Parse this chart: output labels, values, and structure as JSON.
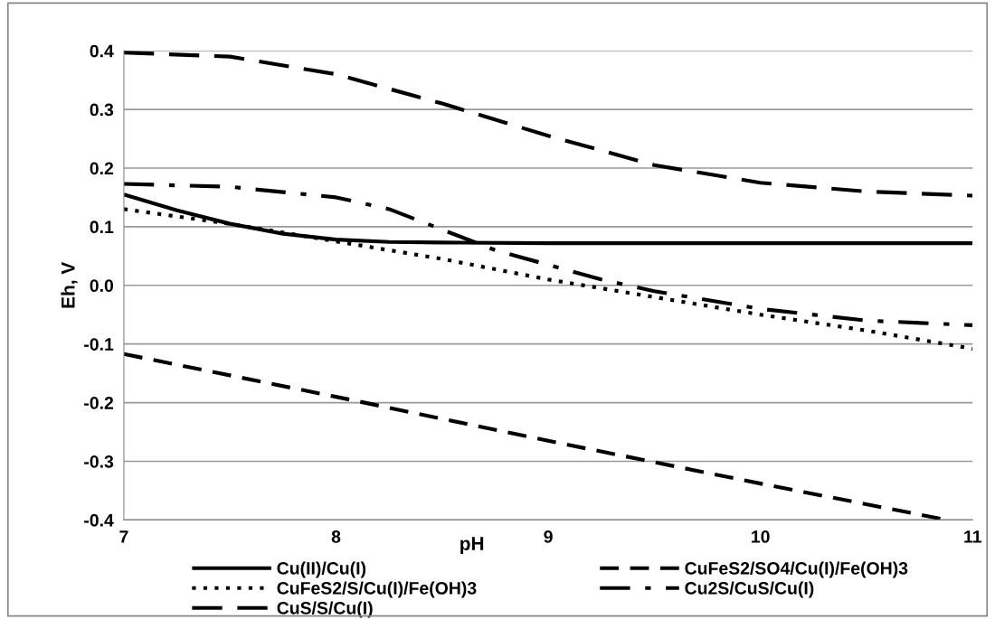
{
  "chart_data": {
    "type": "line",
    "xlabel": "pH",
    "ylabel": "Eh, V",
    "xlim": [
      7,
      11
    ],
    "xticks": [
      7,
      8,
      9,
      10,
      11
    ],
    "ylim": [
      -0.4,
      0.4
    ],
    "yticks": [
      {
        "value": -0.4,
        "label": "-0.4"
      },
      {
        "value": -0.3,
        "label": "-0.3"
      },
      {
        "value": -0.2,
        "label": "-0.2"
      },
      {
        "value": -0.1,
        "label": "-0.1"
      },
      {
        "value": 0,
        "label": "0.0"
      },
      {
        "value": 0.1,
        "label": "0.1"
      },
      {
        "value": 0.2,
        "label": "0.2"
      },
      {
        "value": 0.3,
        "label": "0.3"
      },
      {
        "value": 0.4,
        "label": "0.4"
      }
    ],
    "grid": "y",
    "legend": "bottom",
    "marker": "none",
    "series": [
      {
        "name": "Cu(II)/Cu(I)",
        "color": "#000000",
        "line_style": "solid",
        "x": [
          7,
          7.25,
          7.5,
          7.75,
          8,
          8.25,
          8.5,
          9,
          10,
          11
        ],
        "values": [
          0.155,
          0.128,
          0.105,
          0.088,
          0.078,
          0.074,
          0.073,
          0.072,
          0.072,
          0.072
        ]
      },
      {
        "name": "CuFeS2/SO4/Cu(I)/Fe(OH)3",
        "color": "#000000",
        "line_style": "dashed",
        "x": [
          7,
          8,
          9,
          10,
          10.88
        ],
        "values": [
          -0.117,
          -0.19,
          -0.265,
          -0.338,
          -0.4
        ]
      },
      {
        "name": "CuFeS2/S/Cu(I)/Fe(OH)3",
        "color": "#000000",
        "line_style": "dotted",
        "x": [
          7,
          7.5,
          8,
          8.5,
          9,
          9.5,
          10,
          10.5,
          11
        ],
        "values": [
          0.13,
          0.105,
          0.075,
          0.045,
          0.01,
          -0.02,
          -0.05,
          -0.077,
          -0.108
        ]
      },
      {
        "name": "Cu2S/CuS/Cu(I)",
        "color": "#000000",
        "line_style": "dashdot",
        "x": [
          7,
          7.5,
          8,
          8.25,
          8.5,
          8.75,
          9,
          9.25,
          9.5,
          10,
          10.5,
          11
        ],
        "values": [
          0.173,
          0.168,
          0.15,
          0.13,
          0.095,
          0.06,
          0.035,
          0.01,
          -0.01,
          -0.04,
          -0.06,
          -0.068
        ]
      },
      {
        "name": "CuS/S/Cu(I)",
        "color": "#000000",
        "line_style": "longdash",
        "x": [
          7,
          7.5,
          8,
          8.5,
          9,
          9.5,
          10,
          10.5,
          11
        ],
        "values": [
          0.397,
          0.39,
          0.36,
          0.31,
          0.255,
          0.205,
          0.175,
          0.16,
          0.153
        ]
      }
    ]
  }
}
